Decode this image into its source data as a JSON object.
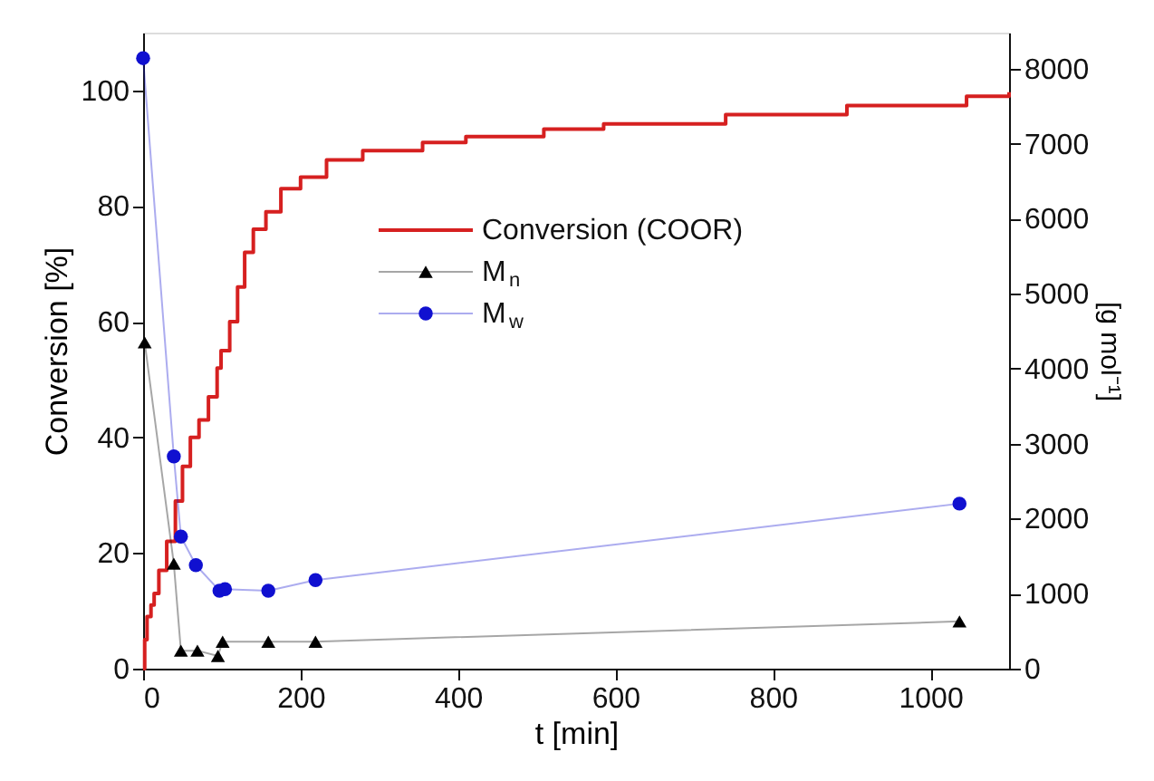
{
  "chart_data": {
    "type": "line",
    "xlabel": "t [min]",
    "ylabel": "Conversion [%]",
    "y2label": "[g mol⁻¹]",
    "xlim": [
      0,
      1100
    ],
    "xticks": [
      0,
      200,
      400,
      600,
      800,
      1000
    ],
    "ylim": [
      0,
      110
    ],
    "yticks": [
      0,
      20,
      40,
      60,
      80,
      100
    ],
    "y2lim": [
      0,
      8480
    ],
    "y2ticks": [
      0,
      1000,
      2000,
      3000,
      4000,
      5000,
      6000,
      7000,
      8000
    ],
    "grid": false,
    "legend": "top",
    "series": [
      {
        "name": "Conversion (COOR)",
        "type": "step",
        "color": "#d62020",
        "marker": "none",
        "x": [
          0,
          2,
          5,
          10,
          14,
          20,
          30,
          41,
          50,
          60,
          71,
          83,
          94,
          99,
          110,
          120,
          129,
          140,
          156,
          175,
          200,
          233,
          279,
          355,
          410,
          509,
          585,
          740,
          894,
          1046,
          1100
        ],
        "values": [
          0,
          5,
          9,
          11,
          13,
          17,
          22,
          29,
          35,
          40,
          43,
          47,
          52,
          55,
          60,
          66,
          72,
          76,
          79,
          83,
          85,
          88,
          89.6,
          91,
          92,
          93.3,
          94.2,
          95.8,
          97.4,
          99,
          99.7
        ]
      },
      {
        "name": "M$_{n}$",
        "axis": "y2",
        "color": "#000000",
        "marker": "triangle",
        "x": [
          2,
          39,
          48,
          69,
          95,
          101,
          159,
          219,
          1037
        ],
        "values": [
          4350,
          1400,
          240,
          240,
          170,
          360,
          360,
          360,
          630
        ]
      },
      {
        "name": "M$_{w}$",
        "axis": "y2",
        "color": "#1010d0",
        "marker": "circle",
        "x": [
          0,
          39,
          48,
          67,
          97,
          104,
          159,
          219,
          1037
        ],
        "values": [
          8140,
          2830,
          1760,
          1380,
          1040,
          1060,
          1040,
          1180,
          2200
        ]
      }
    ]
  }
}
